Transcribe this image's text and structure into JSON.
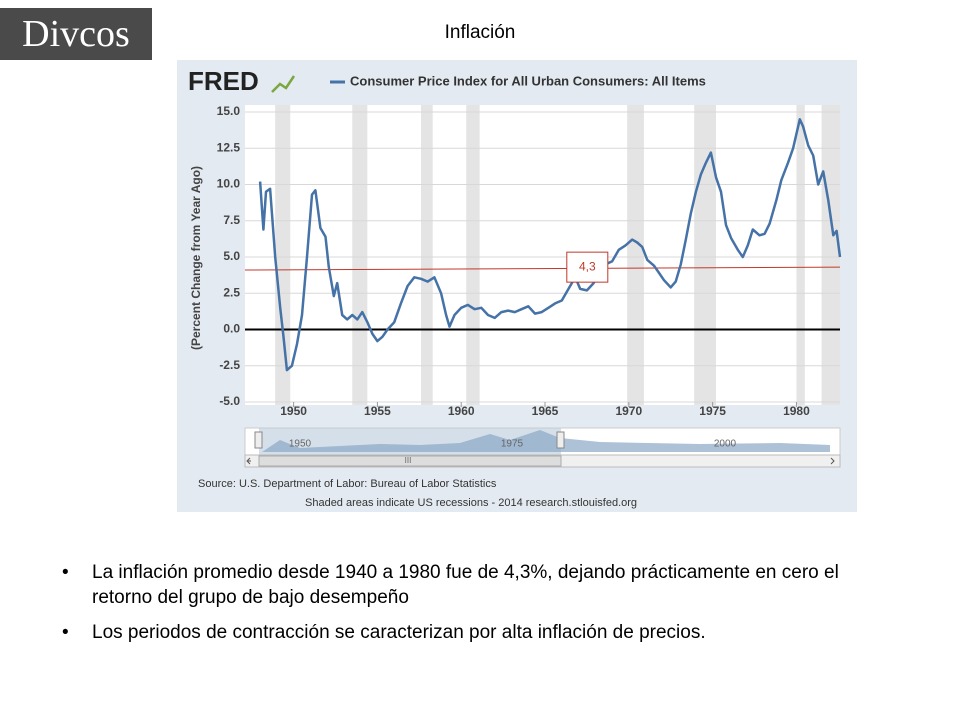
{
  "logo": "Divcos",
  "slide_title": "Inflación",
  "bullets": [
    "La inflación promedio desde 1940 a 1980 fue de 4,3%, dejando prácticamente en cero el retorno del grupo de bajo desempeño",
    "Los periodos de contracción se caracterizan por alta inflación de precios."
  ],
  "chart_data": {
    "type": "line",
    "brand": "FRED",
    "title": "Consumer Price Index for All Urban Consumers: All Items",
    "y_label": "(Percent Change from Year Ago)",
    "x": [
      1948.0,
      1948.2,
      1948.35,
      1948.6,
      1948.9,
      1949.2,
      1949.4,
      1949.6,
      1949.9,
      1950.2,
      1950.5,
      1950.8,
      1951.1,
      1951.3,
      1951.6,
      1951.9,
      1952.1,
      1952.4,
      1952.6,
      1952.9,
      1953.2,
      1953.5,
      1953.8,
      1954.1,
      1954.4,
      1954.7,
      1955.0,
      1955.3,
      1955.6,
      1956.0,
      1956.4,
      1956.8,
      1957.2,
      1957.6,
      1958.0,
      1958.4,
      1958.8,
      1959.1,
      1959.3,
      1959.6,
      1960.0,
      1960.4,
      1960.8,
      1961.2,
      1961.6,
      1962.0,
      1962.4,
      1962.8,
      1963.2,
      1963.6,
      1964.0,
      1964.4,
      1964.8,
      1965.2,
      1965.6,
      1966.0,
      1966.4,
      1966.8,
      1967.1,
      1967.5,
      1967.9,
      1968.2,
      1968.6,
      1969.0,
      1969.4,
      1969.8,
      1970.2,
      1970.5,
      1970.8,
      1971.1,
      1971.5,
      1971.8,
      1972.1,
      1972.5,
      1972.8,
      1973.1,
      1973.4,
      1973.7,
      1974.0,
      1974.3,
      1974.6,
      1974.9,
      1975.2,
      1975.5,
      1975.8,
      1976.1,
      1976.5,
      1976.8,
      1977.1,
      1977.4,
      1977.8,
      1978.1,
      1978.4,
      1978.8,
      1979.1,
      1979.5,
      1979.8,
      1980.2,
      1980.4,
      1980.7,
      1981.0,
      1981.3,
      1981.6,
      1981.9,
      1982.2,
      1982.4,
      1982.6
    ],
    "series": [
      {
        "name": "Consumer Price Index for All Urban Consumers: All Items",
        "color": "#4572a7",
        "values": [
          10.2,
          6.9,
          9.5,
          9.7,
          5.0,
          1.5,
          -0.5,
          -2.8,
          -2.5,
          -1.0,
          1.0,
          5.0,
          9.3,
          9.6,
          7.0,
          6.4,
          4.3,
          2.3,
          3.2,
          1.0,
          0.7,
          1.0,
          0.7,
          1.2,
          0.5,
          -0.3,
          -0.8,
          -0.5,
          0.0,
          0.5,
          1.8,
          3.0,
          3.6,
          3.5,
          3.3,
          3.6,
          2.5,
          1.0,
          0.2,
          1.0,
          1.5,
          1.7,
          1.4,
          1.5,
          1.0,
          0.8,
          1.2,
          1.3,
          1.2,
          1.4,
          1.6,
          1.1,
          1.2,
          1.5,
          1.8,
          2.0,
          2.8,
          3.6,
          2.8,
          2.7,
          3.2,
          4.0,
          4.5,
          4.7,
          5.5,
          5.8,
          6.2,
          6.0,
          5.7,
          4.8,
          4.4,
          3.9,
          3.4,
          2.9,
          3.3,
          4.5,
          6.2,
          8.0,
          9.5,
          10.7,
          11.5,
          12.2,
          10.5,
          9.5,
          7.2,
          6.3,
          5.5,
          5.0,
          5.8,
          6.9,
          6.5,
          6.6,
          7.3,
          8.9,
          10.3,
          11.5,
          12.5,
          14.5,
          14.0,
          12.7,
          12.0,
          10.0,
          10.9,
          8.9,
          6.5,
          6.8,
          5.0
        ]
      }
    ],
    "xlim": [
      1947.1,
      1982.6
    ],
    "xticks": [
      1950,
      1955,
      1960,
      1965,
      1970,
      1975,
      1980
    ],
    "ylim": [
      -5,
      15
    ],
    "yticks": [
      {
        "value": -5,
        "label": "-5.0"
      },
      {
        "value": -2.5,
        "label": "-2.5"
      },
      {
        "value": 0,
        "label": "0.0"
      },
      {
        "value": 2.5,
        "label": "2.5"
      },
      {
        "value": 5,
        "label": "5.0"
      },
      {
        "value": 7.5,
        "label": "7.5"
      },
      {
        "value": 10,
        "label": "10.0"
      },
      {
        "value": 12.5,
        "label": "12.5"
      },
      {
        "value": 15,
        "label": "15.0"
      }
    ],
    "grid": true,
    "recessions": [
      [
        1948.9,
        1949.8
      ],
      [
        1953.5,
        1954.4
      ],
      [
        1957.6,
        1958.3
      ],
      [
        1960.3,
        1961.1
      ],
      [
        1969.9,
        1970.9
      ],
      [
        1973.9,
        1975.2
      ],
      [
        1980.0,
        1980.5
      ],
      [
        1981.5,
        1982.9
      ]
    ],
    "trend_line": {
      "values": [
        4.1,
        4.3
      ],
      "label": "4,3",
      "color": "#c0392b"
    },
    "navigator_labels": [
      "1950",
      "1975",
      "2000"
    ],
    "scrollbar_label": "III",
    "source": "Source: U.S. Department of Labor: Bureau of Labor Statistics",
    "note": "Shaded areas indicate US recessions - 2014 research.stlouisfed.org"
  }
}
